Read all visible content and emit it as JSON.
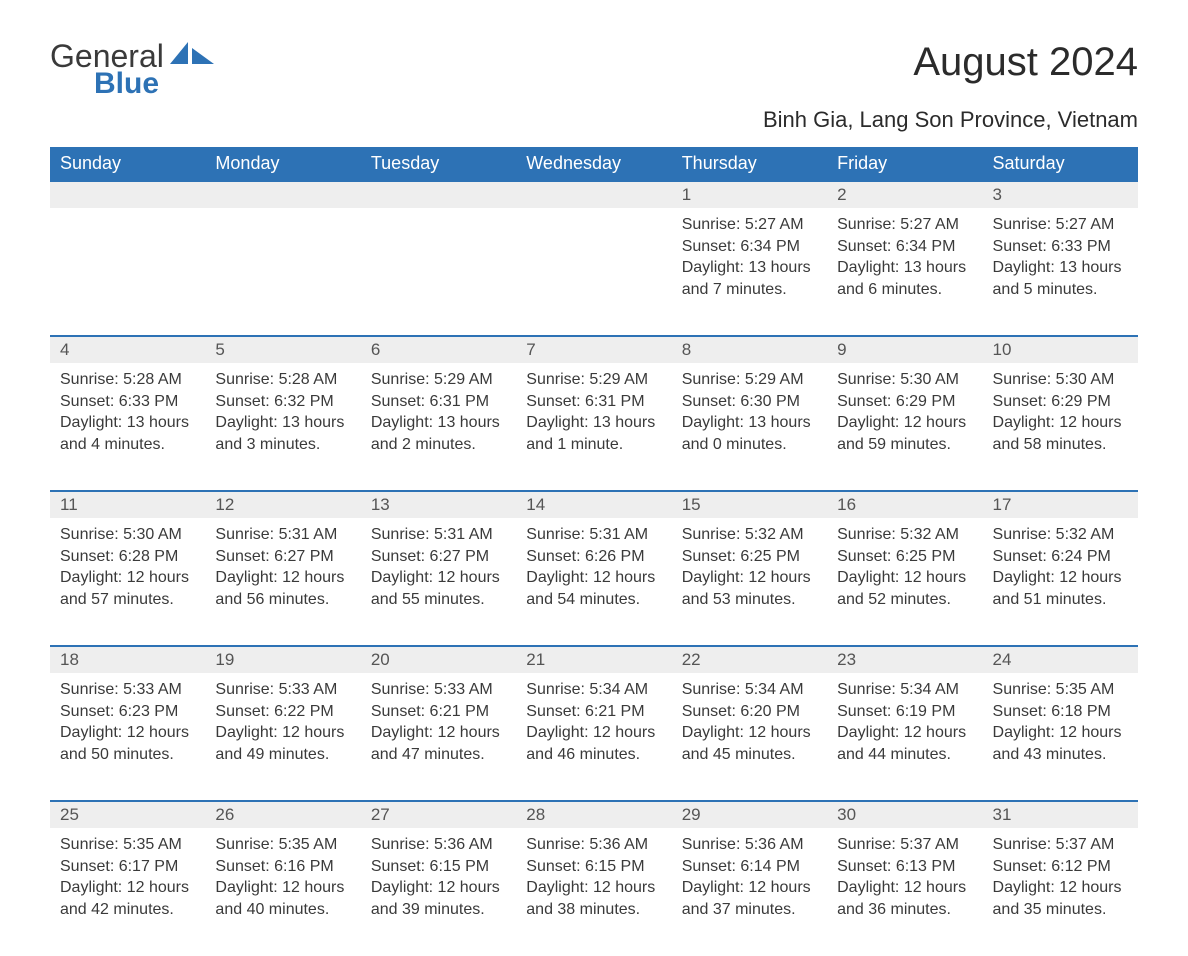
{
  "brand": {
    "word1": "General",
    "word2": "Blue"
  },
  "title": "August 2024",
  "subtitle": "Binh Gia, Lang Son Province, Vietnam",
  "colors": {
    "header_bg": "#2d72b5",
    "header_text": "#ffffff",
    "daynum_bg": "#eeeeee",
    "daynum_text": "#555555",
    "body_text": "#3a3a3a",
    "row_divider": "#2d72b5",
    "page_bg": "#ffffff"
  },
  "typography": {
    "title_fontsize": 40,
    "subtitle_fontsize": 22,
    "header_fontsize": 18,
    "daynum_fontsize": 17,
    "details_fontsize": 16,
    "logo_fontsize": 32
  },
  "columns": [
    "Sunday",
    "Monday",
    "Tuesday",
    "Wednesday",
    "Thursday",
    "Friday",
    "Saturday"
  ],
  "weeks": [
    [
      null,
      null,
      null,
      null,
      {
        "day": "1",
        "sunrise": "5:27 AM",
        "sunset": "6:34 PM",
        "daylight": "13 hours and 7 minutes."
      },
      {
        "day": "2",
        "sunrise": "5:27 AM",
        "sunset": "6:34 PM",
        "daylight": "13 hours and 6 minutes."
      },
      {
        "day": "3",
        "sunrise": "5:27 AM",
        "sunset": "6:33 PM",
        "daylight": "13 hours and 5 minutes."
      }
    ],
    [
      {
        "day": "4",
        "sunrise": "5:28 AM",
        "sunset": "6:33 PM",
        "daylight": "13 hours and 4 minutes."
      },
      {
        "day": "5",
        "sunrise": "5:28 AM",
        "sunset": "6:32 PM",
        "daylight": "13 hours and 3 minutes."
      },
      {
        "day": "6",
        "sunrise": "5:29 AM",
        "sunset": "6:31 PM",
        "daylight": "13 hours and 2 minutes."
      },
      {
        "day": "7",
        "sunrise": "5:29 AM",
        "sunset": "6:31 PM",
        "daylight": "13 hours and 1 minute."
      },
      {
        "day": "8",
        "sunrise": "5:29 AM",
        "sunset": "6:30 PM",
        "daylight": "13 hours and 0 minutes."
      },
      {
        "day": "9",
        "sunrise": "5:30 AM",
        "sunset": "6:29 PM",
        "daylight": "12 hours and 59 minutes."
      },
      {
        "day": "10",
        "sunrise": "5:30 AM",
        "sunset": "6:29 PM",
        "daylight": "12 hours and 58 minutes."
      }
    ],
    [
      {
        "day": "11",
        "sunrise": "5:30 AM",
        "sunset": "6:28 PM",
        "daylight": "12 hours and 57 minutes."
      },
      {
        "day": "12",
        "sunrise": "5:31 AM",
        "sunset": "6:27 PM",
        "daylight": "12 hours and 56 minutes."
      },
      {
        "day": "13",
        "sunrise": "5:31 AM",
        "sunset": "6:27 PM",
        "daylight": "12 hours and 55 minutes."
      },
      {
        "day": "14",
        "sunrise": "5:31 AM",
        "sunset": "6:26 PM",
        "daylight": "12 hours and 54 minutes."
      },
      {
        "day": "15",
        "sunrise": "5:32 AM",
        "sunset": "6:25 PM",
        "daylight": "12 hours and 53 minutes."
      },
      {
        "day": "16",
        "sunrise": "5:32 AM",
        "sunset": "6:25 PM",
        "daylight": "12 hours and 52 minutes."
      },
      {
        "day": "17",
        "sunrise": "5:32 AM",
        "sunset": "6:24 PM",
        "daylight": "12 hours and 51 minutes."
      }
    ],
    [
      {
        "day": "18",
        "sunrise": "5:33 AM",
        "sunset": "6:23 PM",
        "daylight": "12 hours and 50 minutes."
      },
      {
        "day": "19",
        "sunrise": "5:33 AM",
        "sunset": "6:22 PM",
        "daylight": "12 hours and 49 minutes."
      },
      {
        "day": "20",
        "sunrise": "5:33 AM",
        "sunset": "6:21 PM",
        "daylight": "12 hours and 47 minutes."
      },
      {
        "day": "21",
        "sunrise": "5:34 AM",
        "sunset": "6:21 PM",
        "daylight": "12 hours and 46 minutes."
      },
      {
        "day": "22",
        "sunrise": "5:34 AM",
        "sunset": "6:20 PM",
        "daylight": "12 hours and 45 minutes."
      },
      {
        "day": "23",
        "sunrise": "5:34 AM",
        "sunset": "6:19 PM",
        "daylight": "12 hours and 44 minutes."
      },
      {
        "day": "24",
        "sunrise": "5:35 AM",
        "sunset": "6:18 PM",
        "daylight": "12 hours and 43 minutes."
      }
    ],
    [
      {
        "day": "25",
        "sunrise": "5:35 AM",
        "sunset": "6:17 PM",
        "daylight": "12 hours and 42 minutes."
      },
      {
        "day": "26",
        "sunrise": "5:35 AM",
        "sunset": "6:16 PM",
        "daylight": "12 hours and 40 minutes."
      },
      {
        "day": "27",
        "sunrise": "5:36 AM",
        "sunset": "6:15 PM",
        "daylight": "12 hours and 39 minutes."
      },
      {
        "day": "28",
        "sunrise": "5:36 AM",
        "sunset": "6:15 PM",
        "daylight": "12 hours and 38 minutes."
      },
      {
        "day": "29",
        "sunrise": "5:36 AM",
        "sunset": "6:14 PM",
        "daylight": "12 hours and 37 minutes."
      },
      {
        "day": "30",
        "sunrise": "5:37 AM",
        "sunset": "6:13 PM",
        "daylight": "12 hours and 36 minutes."
      },
      {
        "day": "31",
        "sunrise": "5:37 AM",
        "sunset": "6:12 PM",
        "daylight": "12 hours and 35 minutes."
      }
    ]
  ],
  "labels": {
    "sunrise": "Sunrise:",
    "sunset": "Sunset:",
    "daylight": "Daylight:"
  }
}
